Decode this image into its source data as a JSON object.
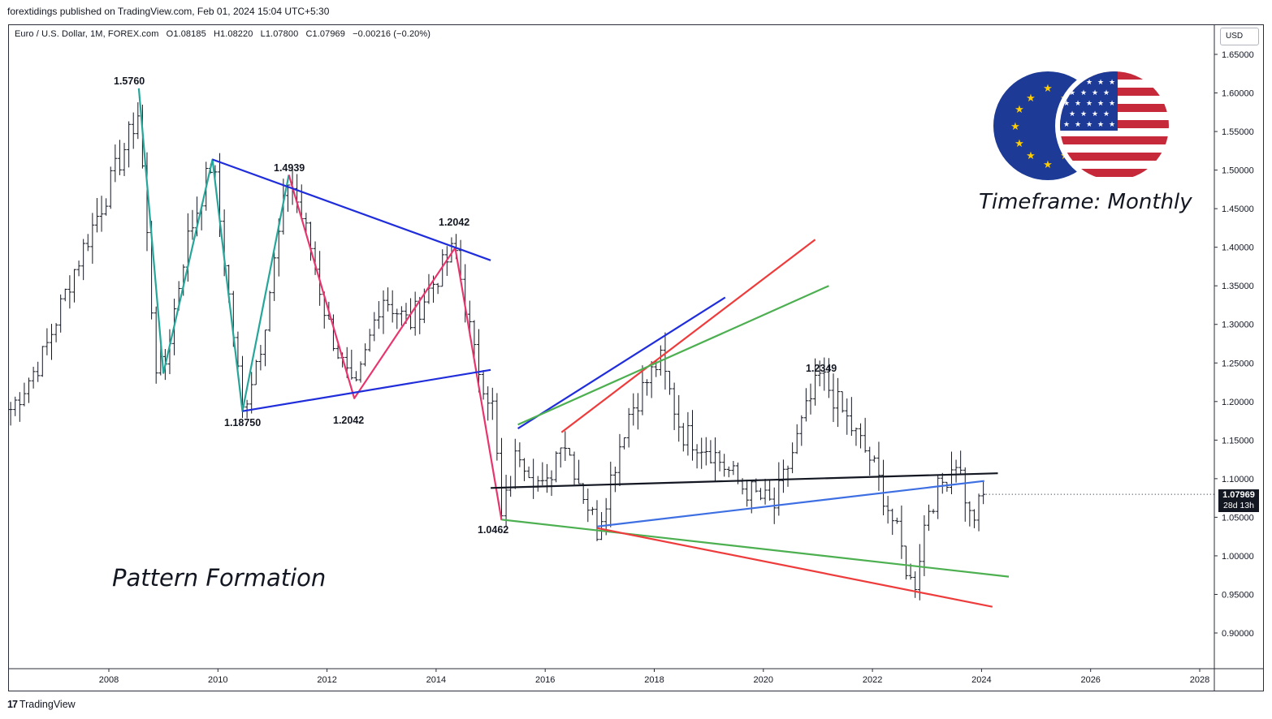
{
  "header": {
    "publisher": "forextidings published on TradingView.com, Feb 01, 2024 15:04 UTC+5:30"
  },
  "legend": {
    "symbol": "Euro / U.S. Dollar, 1M, FOREX.com",
    "open": "O1.08185",
    "high": "H1.08220",
    "low": "L1.07800",
    "close": "C1.07969",
    "change": "−0.00216 (−0.20%)"
  },
  "currency_button": "USD",
  "last_price": {
    "value": "1.07969",
    "countdown": "28d 13h"
  },
  "footer": {
    "brand_logo": "17",
    "brand": "TradingView"
  },
  "annotations": {
    "pattern_title": "Pattern Formation",
    "timeframe": "Timeframe: Monthly",
    "labels": [
      {
        "text": "1.5760"
      },
      {
        "text": "1.4939"
      },
      {
        "text": "1.2042"
      },
      {
        "text": "1.18750"
      },
      {
        "text": "1.2042"
      },
      {
        "text": "1.0462"
      },
      {
        "text": "1.2349"
      }
    ]
  },
  "colors": {
    "up_candle": "#131722",
    "teal_zigzag": "#26a69a",
    "pink_zigzag": "#e8356d",
    "blue_line": "#1f2ddb",
    "light_blue_line": "#3d6fe3",
    "red_line": "#ee3b3b",
    "green_line": "#4caf50",
    "black_line": "#131722"
  },
  "icons": {
    "flag": "eur-usd-flag-icon",
    "logo": "tradingview-logo-icon"
  },
  "chart_data": {
    "type": "ohlc",
    "title": "Euro / U.S. Dollar, 1M, FOREX.com",
    "ylim": [
      0.87,
      1.675
    ],
    "yticks": [
      "0.90000",
      "0.95000",
      "1.00000",
      "1.05000",
      "1.10000",
      "1.15000",
      "1.20000",
      "1.25000",
      "1.30000",
      "1.35000",
      "1.40000",
      "1.45000",
      "1.50000",
      "1.55000",
      "1.60000",
      "1.65000"
    ],
    "xlim": [
      2006.2,
      2028.25
    ],
    "xticks": [
      "2008",
      "2010",
      "2012",
      "2014",
      "2016",
      "2018",
      "2020",
      "2022",
      "2024",
      "2026",
      "2028"
    ],
    "grid": false,
    "swing_points": [
      [
        2006.2,
        1.19
      ],
      [
        2006.8,
        1.26
      ],
      [
        2007.3,
        1.36
      ],
      [
        2007.9,
        1.46
      ],
      [
        2008.55,
        1.576
      ],
      [
        2008.85,
        1.25
      ],
      [
        2009.0,
        1.237
      ],
      [
        2009.4,
        1.4
      ],
      [
        2009.9,
        1.5138
      ],
      [
        2010.45,
        1.1875
      ],
      [
        2010.8,
        1.28
      ],
      [
        2011.3,
        1.4939
      ],
      [
        2011.7,
        1.4
      ],
      [
        2012.0,
        1.305
      ],
      [
        2012.5,
        1.2042
      ],
      [
        2013.0,
        1.34
      ],
      [
        2013.5,
        1.3
      ],
      [
        2014.0,
        1.36
      ],
      [
        2014.35,
        1.3993
      ],
      [
        2014.7,
        1.26
      ],
      [
        2015.05,
        1.19
      ],
      [
        2015.2,
        1.0462
      ],
      [
        2015.5,
        1.14
      ],
      [
        2016.0,
        1.08
      ],
      [
        2016.3,
        1.16
      ],
      [
        2016.95,
        1.034
      ],
      [
        2017.5,
        1.18
      ],
      [
        2018.1,
        1.2555
      ],
      [
        2018.5,
        1.16
      ],
      [
        2019.0,
        1.14
      ],
      [
        2019.6,
        1.09
      ],
      [
        2020.2,
        1.0636
      ],
      [
        2020.8,
        1.19
      ],
      [
        2021.05,
        1.2349
      ],
      [
        2021.5,
        1.18
      ],
      [
        2022.0,
        1.12
      ],
      [
        2022.4,
        1.04
      ],
      [
        2022.75,
        0.9536
      ],
      [
        2023.0,
        1.06
      ],
      [
        2023.55,
        1.1276
      ],
      [
        2023.8,
        1.0448
      ],
      [
        2024.08,
        1.0797
      ]
    ],
    "last_close": 1.07969,
    "overlays": [
      {
        "name": "teal-zigzag",
        "color": "#26a69a",
        "points": [
          [
            2008.55,
            1.606
          ],
          [
            2009.0,
            1.237
          ],
          [
            2009.9,
            1.5138
          ],
          [
            2010.45,
            1.1875
          ],
          [
            2011.3,
            1.4939
          ]
        ]
      },
      {
        "name": "pink-zigzag",
        "color": "#e8356d",
        "points": [
          [
            2011.3,
            1.4939
          ],
          [
            2012.5,
            1.2042
          ],
          [
            2014.35,
            1.3993
          ],
          [
            2015.2,
            1.0462
          ]
        ]
      },
      {
        "name": "upper-triangle-line",
        "color": "#1f2ddb",
        "points": [
          [
            2009.9,
            1.5138
          ],
          [
            2015.0,
            1.383
          ]
        ]
      },
      {
        "name": "lower-triangle-line",
        "color": "#1f2ddb",
        "points": [
          [
            2010.45,
            1.1875
          ],
          [
            2015.0,
            1.241
          ]
        ]
      },
      {
        "name": "rising-blue-line",
        "color": "#1f2ddb",
        "points": [
          [
            2015.5,
            1.165
          ],
          [
            2019.3,
            1.335
          ]
        ]
      },
      {
        "name": "rising-red-line",
        "color": "#ee3b3b",
        "points": [
          [
            2016.3,
            1.16
          ],
          [
            2020.95,
            1.41
          ]
        ]
      },
      {
        "name": "rising-green-line",
        "color": "#4caf50",
        "points": [
          [
            2015.5,
            1.17
          ],
          [
            2021.2,
            1.35
          ]
        ]
      },
      {
        "name": "horizontal-black-line",
        "color": "#131722",
        "points": [
          [
            2015.0,
            1.088
          ],
          [
            2024.3,
            1.107
          ]
        ]
      },
      {
        "name": "rising-light-blue-line",
        "color": "#3d6fe3",
        "points": [
          [
            2016.95,
            1.038
          ],
          [
            2024.05,
            1.097
          ]
        ]
      },
      {
        "name": "falling-green-line",
        "color": "#4caf50",
        "points": [
          [
            2015.2,
            1.047
          ],
          [
            2024.5,
            0.973
          ]
        ]
      },
      {
        "name": "falling-red-line",
        "color": "#ee3b3b",
        "points": [
          [
            2016.95,
            1.036
          ],
          [
            2024.2,
            0.934
          ]
        ]
      }
    ]
  }
}
